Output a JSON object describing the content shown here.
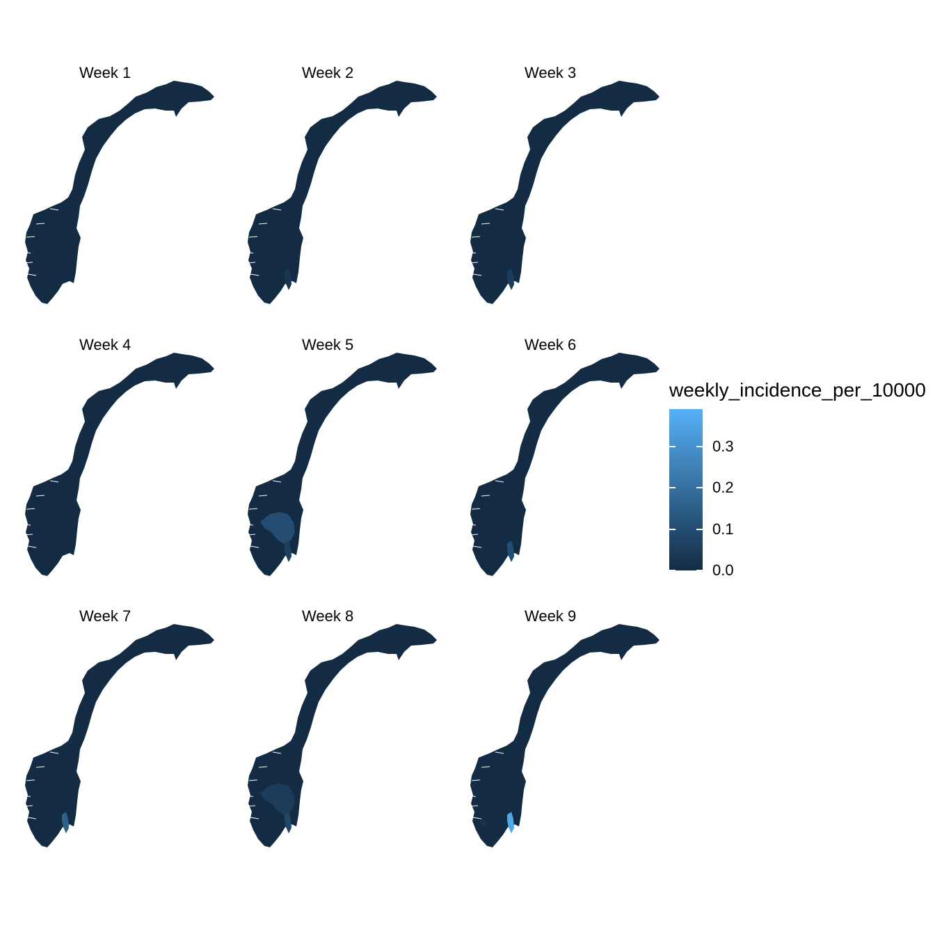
{
  "legend": {
    "title": "weekly_incidence_per_10000",
    "ticks": [
      {
        "value": 0.0,
        "label": "0.0"
      },
      {
        "value": 0.1,
        "label": "0.1"
      },
      {
        "value": 0.2,
        "label": "0.2"
      },
      {
        "value": 0.3,
        "label": "0.3"
      }
    ],
    "range": [
      0.0,
      0.39
    ],
    "color_low": "#132b43",
    "color_high": "#56b1f7"
  },
  "panels": [
    {
      "title": "Week 1",
      "highlights": []
    },
    {
      "title": "Week 2",
      "highlights": [
        {
          "region": "oslo-fjord",
          "value": 0.03
        }
      ]
    },
    {
      "title": "Week 3",
      "highlights": [
        {
          "region": "oslo-fjord",
          "value": 0.05
        }
      ]
    },
    {
      "title": "Week 4",
      "highlights": []
    },
    {
      "title": "Week 5",
      "highlights": [
        {
          "region": "inland-east",
          "value": 0.1
        },
        {
          "region": "oslo-fjord",
          "value": 0.06
        }
      ]
    },
    {
      "title": "Week 6",
      "highlights": [
        {
          "region": "oslo-fjord",
          "value": 0.1
        }
      ]
    },
    {
      "title": "Week 7",
      "highlights": [
        {
          "region": "oslo-fjord",
          "value": 0.16
        }
      ]
    },
    {
      "title": "Week 8",
      "highlights": [
        {
          "region": "inland-east",
          "value": 0.05
        },
        {
          "region": "oslo-fjord",
          "value": 0.08
        }
      ]
    },
    {
      "title": "Week 9",
      "highlights": [
        {
          "region": "oslo-fjord",
          "value": 0.36
        },
        {
          "region": "south-west",
          "value": 0.02
        }
      ]
    }
  ]
}
